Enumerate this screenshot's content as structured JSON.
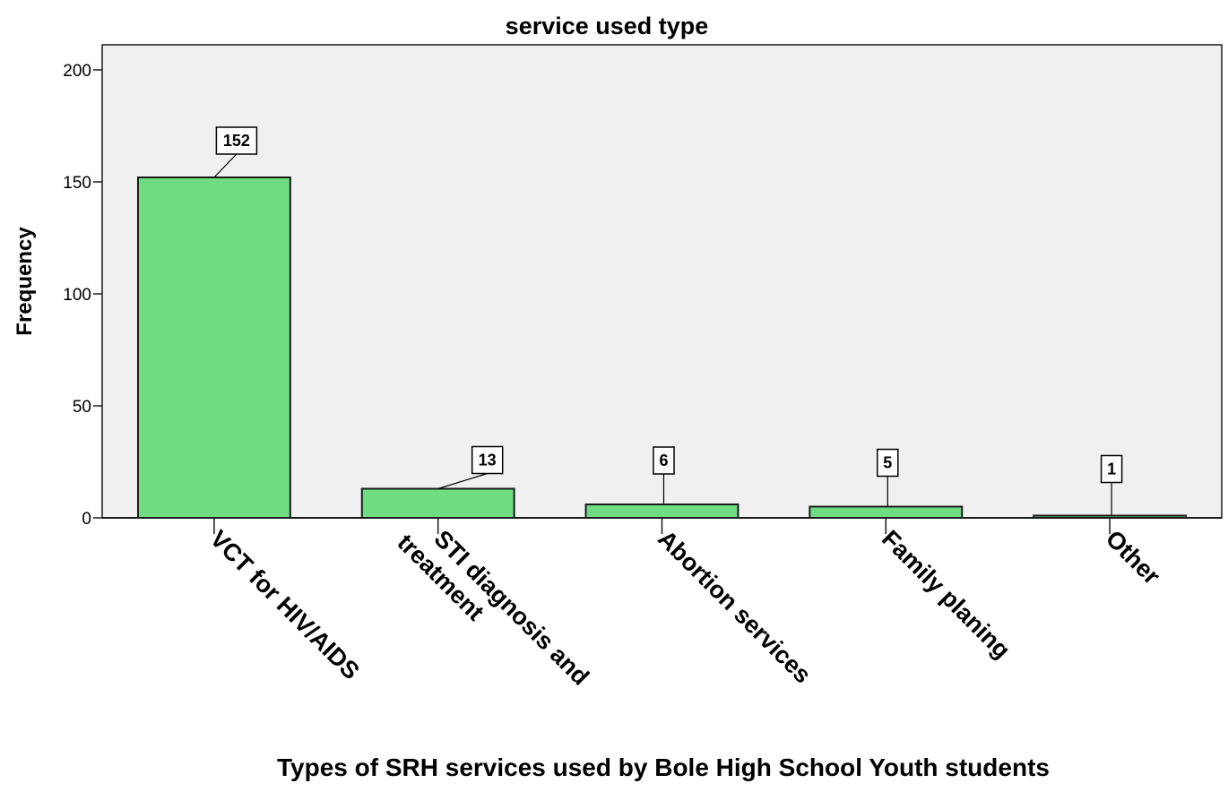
{
  "chart_data": {
    "type": "bar",
    "title": "service used type",
    "xlabel": "Types of SRH  services used by Bole High School Youth students",
    "ylabel": "Frequency",
    "categories": [
      [
        "VCT for HIV/AIDS"
      ],
      [
        "STI diagnosis and",
        "treatment"
      ],
      [
        "Abortion services"
      ],
      [
        "Family planing"
      ],
      [
        "Other"
      ]
    ],
    "values": [
      152,
      13,
      6,
      5,
      1
    ],
    "data_labels": [
      "152",
      "13",
      "6",
      "5",
      "1"
    ],
    "ylim": [
      0,
      210
    ],
    "yticks": [
      0,
      50,
      100,
      150,
      200
    ],
    "ytick_labels": [
      "0",
      "50",
      "100",
      "150",
      "200"
    ],
    "grid": false,
    "legend": "none",
    "colors": {
      "bar_fill": "#6fdc82",
      "bar_stroke": "#1a1a1a",
      "plot_background": "#f0f0f0",
      "axis": "#1a1a1a"
    }
  }
}
